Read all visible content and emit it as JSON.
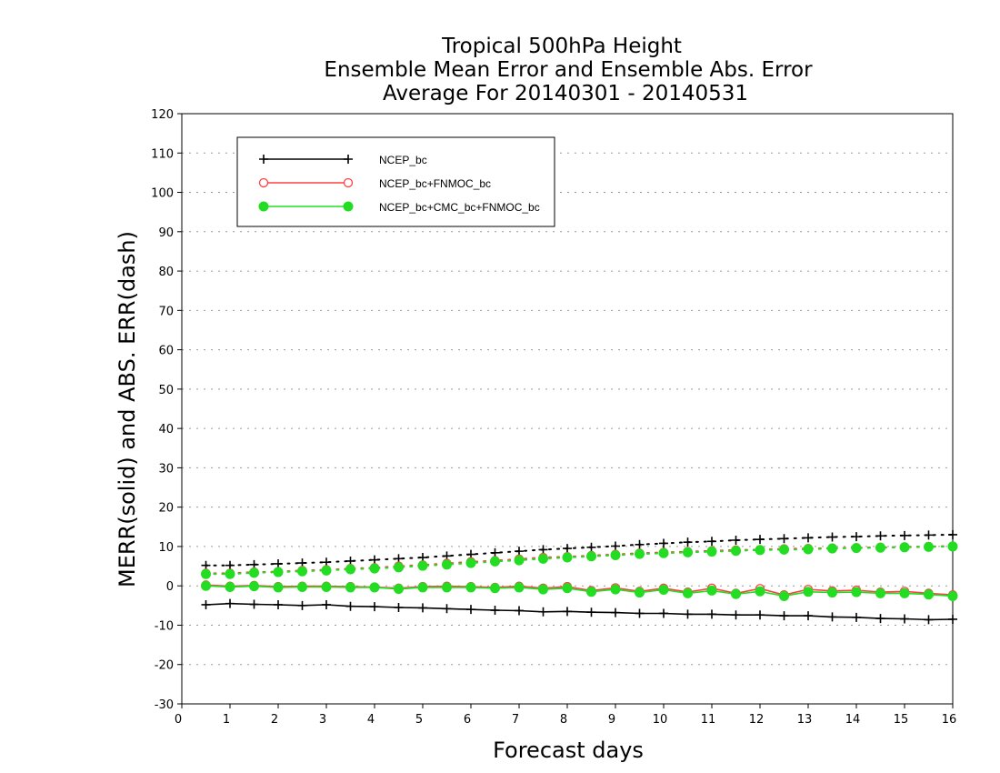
{
  "chart_data": {
    "type": "line",
    "title": [
      "Tropical 500hPa Height",
      "Ensemble Mean Error and Ensemble Abs. Error",
      "Average For 20140301 - 20140531"
    ],
    "xlabel": "Forecast days",
    "ylabel": "MERR(solid) and ABS. ERR(dash)",
    "xlim": [
      0,
      16
    ],
    "ylim": [
      -30,
      120
    ],
    "xticks": [
      0,
      1,
      2,
      3,
      4,
      5,
      6,
      7,
      8,
      9,
      10,
      11,
      12,
      13,
      14,
      15,
      16
    ],
    "yticks": [
      -30,
      -20,
      -10,
      0,
      10,
      20,
      30,
      40,
      50,
      60,
      70,
      80,
      90,
      100,
      110,
      120
    ],
    "grid": "horizontal dotted",
    "legend_position": "top-left",
    "x": [
      0.5,
      1,
      1.5,
      2,
      2.5,
      3,
      3.5,
      4,
      4.5,
      5,
      5.5,
      6,
      6.5,
      7,
      7.5,
      8,
      8.5,
      9,
      9.5,
      10,
      10.5,
      11,
      11.5,
      12,
      12.5,
      13,
      13.5,
      14,
      14.5,
      15,
      15.5,
      16
    ],
    "series": [
      {
        "name": "NCEP_bc",
        "color": "#000000",
        "marker": "plus",
        "merr": [
          -4.8,
          -4.5,
          -4.7,
          -4.8,
          -5.0,
          -4.8,
          -5.2,
          -5.3,
          -5.5,
          -5.6,
          -5.8,
          -6.0,
          -6.2,
          -6.3,
          -6.6,
          -6.5,
          -6.7,
          -6.8,
          -7.0,
          -7.0,
          -7.2,
          -7.2,
          -7.4,
          -7.4,
          -7.6,
          -7.6,
          -7.9,
          -8.0,
          -8.3,
          -8.4,
          -8.6,
          -8.5
        ],
        "abserr": [
          5.2,
          5.2,
          5.4,
          5.6,
          5.8,
          6.0,
          6.3,
          6.6,
          6.9,
          7.2,
          7.6,
          8.0,
          8.4,
          8.8,
          9.2,
          9.5,
          9.8,
          10.1,
          10.5,
          10.8,
          11.1,
          11.3,
          11.6,
          11.8,
          12.0,
          12.2,
          12.4,
          12.5,
          12.7,
          12.8,
          12.9,
          13.0
        ]
      },
      {
        "name": "NCEP_bc+FNMOC_bc",
        "color": "#ff4040",
        "marker": "open-circle",
        "merr": [
          0.2,
          -0.1,
          0.1,
          -0.2,
          -0.1,
          -0.1,
          -0.2,
          -0.3,
          -0.6,
          -0.2,
          -0.1,
          -0.2,
          -0.4,
          -0.1,
          -0.6,
          -0.2,
          -1.2,
          -0.5,
          -1.4,
          -0.6,
          -1.6,
          -0.6,
          -1.9,
          -0.7,
          -2.3,
          -0.9,
          -1.3,
          -1.1,
          -1.6,
          -1.4,
          -1.9,
          -2.3
        ],
        "abserr": [
          3.2,
          3.2,
          3.5,
          3.6,
          3.9,
          4.1,
          4.4,
          4.6,
          5.0,
          5.3,
          5.7,
          6.1,
          6.4,
          6.8,
          7.2,
          7.4,
          7.7,
          8.0,
          8.3,
          8.5,
          8.7,
          8.9,
          9.1,
          9.2,
          9.4,
          9.5,
          9.6,
          9.7,
          9.8,
          9.9,
          10.0,
          10.1
        ]
      },
      {
        "name": "NCEP_bc+CMC_bc+FNMOC_bc",
        "color": "#22dd22",
        "marker": "filled-circle",
        "merr": [
          0.0,
          -0.3,
          -0.1,
          -0.4,
          -0.3,
          -0.3,
          -0.4,
          -0.4,
          -0.8,
          -0.4,
          -0.4,
          -0.4,
          -0.6,
          -0.4,
          -0.9,
          -0.6,
          -1.5,
          -0.9,
          -1.7,
          -1.0,
          -1.9,
          -1.2,
          -2.1,
          -1.4,
          -2.6,
          -1.5,
          -1.7,
          -1.6,
          -1.9,
          -1.9,
          -2.2,
          -2.6
        ],
        "abserr": [
          3.0,
          3.0,
          3.3,
          3.5,
          3.7,
          3.9,
          4.2,
          4.4,
          4.7,
          5.1,
          5.4,
          5.8,
          6.2,
          6.5,
          6.9,
          7.2,
          7.5,
          7.8,
          8.1,
          8.3,
          8.5,
          8.7,
          8.9,
          9.1,
          9.2,
          9.3,
          9.5,
          9.6,
          9.7,
          9.8,
          9.9,
          10.0
        ]
      }
    ]
  }
}
